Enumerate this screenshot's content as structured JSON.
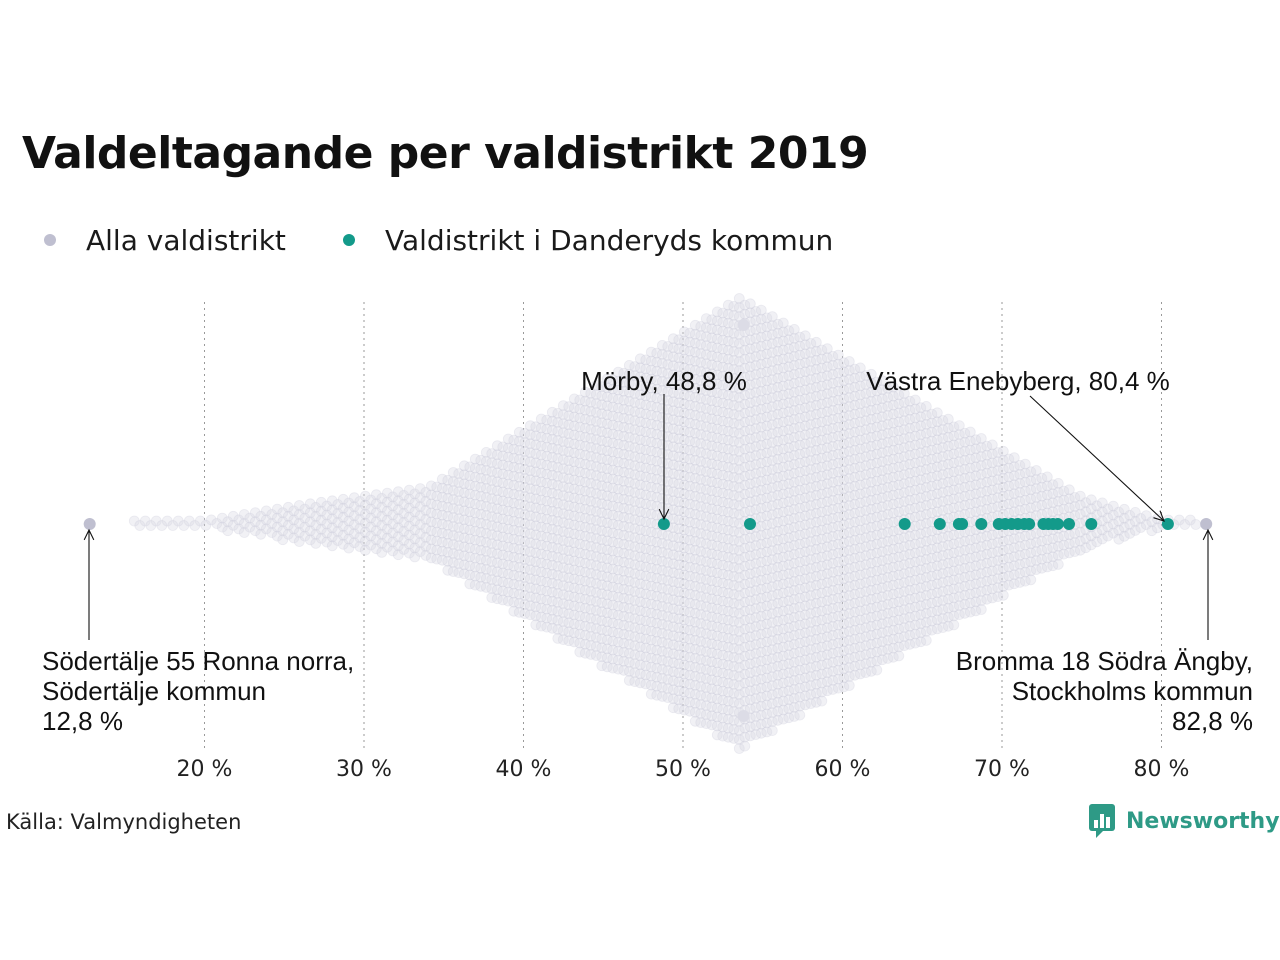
{
  "chart_data": {
    "type": "scatter",
    "subtype": "beeswarm",
    "title": "Valdeltagande per valdistrikt 2019",
    "xlabel": "",
    "ylabel": "",
    "xlim": [
      11,
      84
    ],
    "x_ticks": [
      20,
      30,
      40,
      50,
      60,
      70,
      80
    ],
    "x_tick_labels": [
      "20 %",
      "30 %",
      "40 %",
      "50 %",
      "60 %",
      "70 %",
      "80 %"
    ],
    "grid": "vertical dotted",
    "legend": "top-left",
    "series": [
      {
        "name": "Alla valdistrikt",
        "color": "#bfbfd0",
        "distribution_note_omitted": true,
        "values": [
          12.8,
          82.8
        ]
      },
      {
        "name": "Valdistrikt i Danderyds kommun",
        "color": "#139a8a",
        "values": [
          48.8,
          54.2,
          63.9,
          66.1,
          67.3,
          67.5,
          68.7,
          69.8,
          70.2,
          70.6,
          71.0,
          71.4,
          71.7,
          72.6,
          72.9,
          73.2,
          73.5,
          74.2,
          75.6,
          80.4
        ]
      }
    ],
    "annotations": [
      {
        "text": [
          "Mörby, 48,8 %"
        ],
        "x": 48.8
      },
      {
        "text": [
          "Västra Enebyberg, 80,4 %"
        ],
        "x": 80.4
      },
      {
        "text": [
          "Södertälje 55 Ronna norra,",
          "Södertälje kommun",
          "12,8 %"
        ],
        "x": 12.8
      },
      {
        "text": [
          "Bromma 18 Södra Ängby,",
          "Stockholms kommun",
          "82,8 %"
        ],
        "x": 82.8
      }
    ]
  },
  "source": "Källa: Valmyndigheten",
  "logo_text": "Newsworthy"
}
